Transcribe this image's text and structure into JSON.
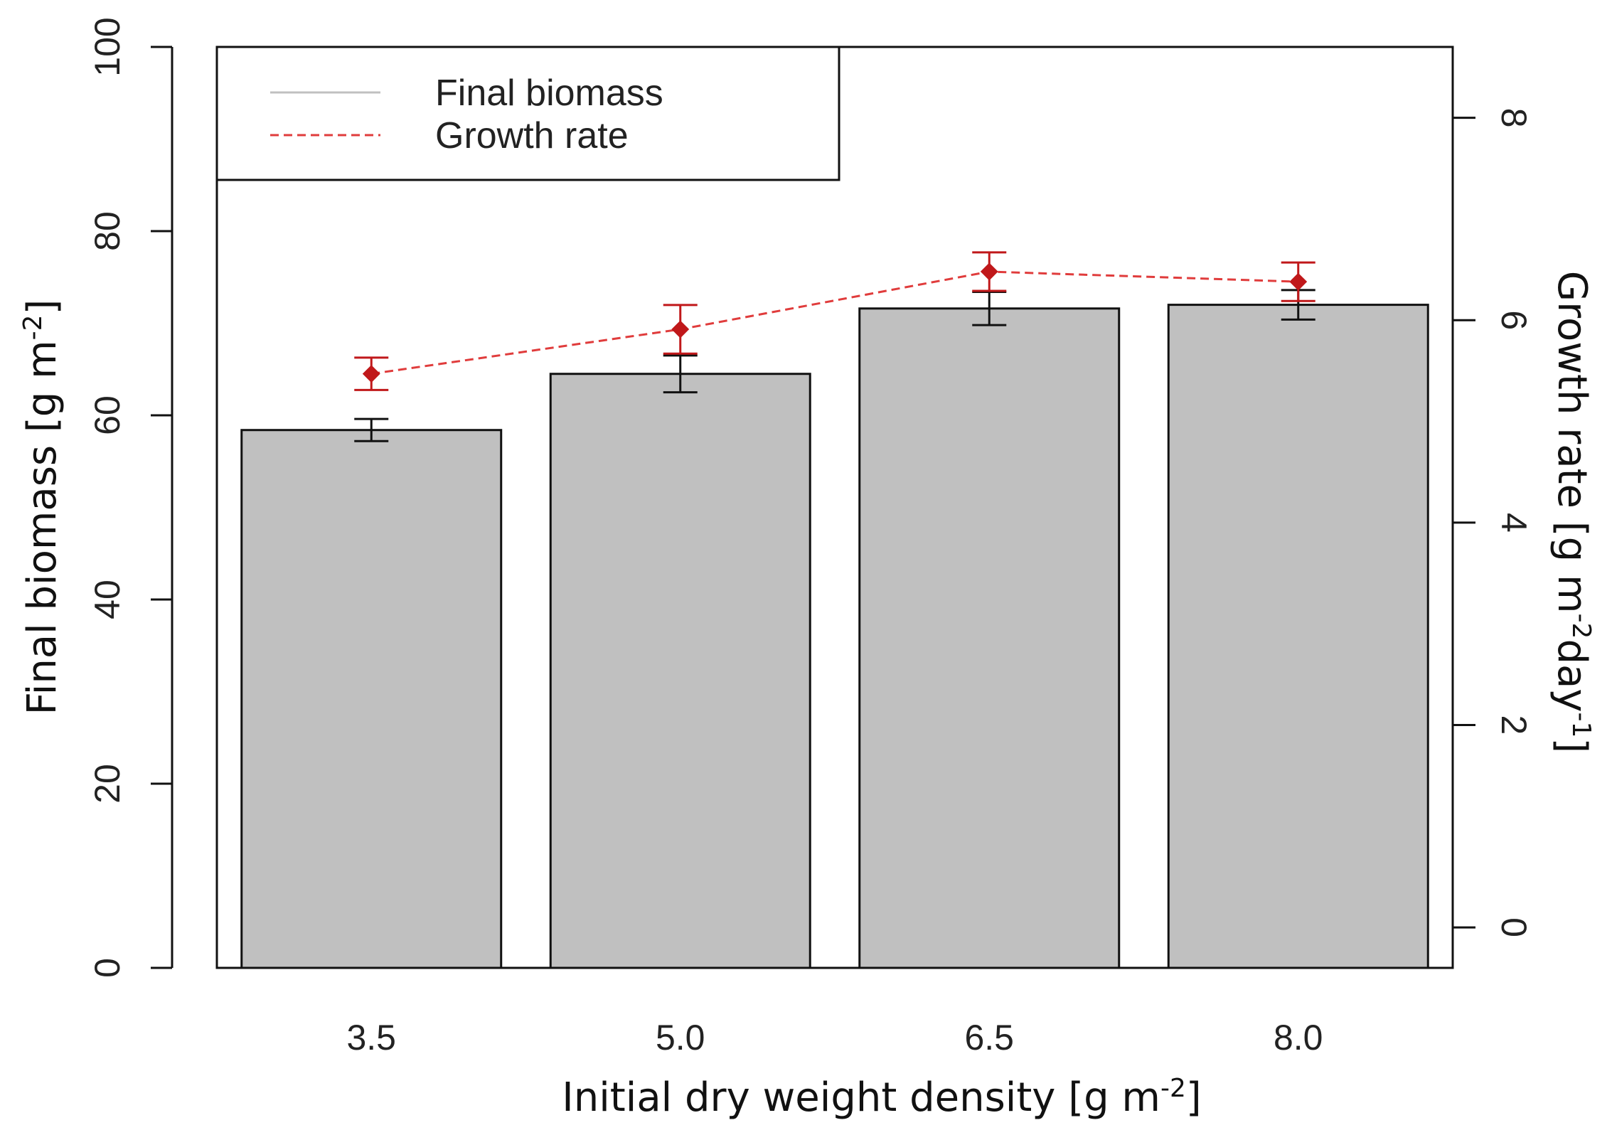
{
  "chart_data": {
    "type": "bar",
    "categories": [
      "3.5",
      "5.0",
      "6.5",
      "8.0"
    ],
    "series": [
      {
        "name": "Final biomass",
        "type": "bar",
        "axis": "left",
        "values": [
          58.4,
          64.5,
          71.6,
          72.0
        ],
        "errors": [
          1.2,
          2.0,
          1.8,
          1.6
        ],
        "color": "#c0c0c0"
      },
      {
        "name": "Growth rate",
        "type": "line",
        "axis": "right",
        "line_style": "dashed",
        "values": [
          5.47,
          5.91,
          6.48,
          6.38
        ],
        "errors": [
          0.16,
          0.24,
          0.19,
          0.19
        ],
        "color": "#e03c3c",
        "marker_color": "#c0181a"
      }
    ],
    "xlabel": "Initial dry weight density [g m",
    "xlabel_sup": "-2",
    "xlabel_end": "]",
    "ylabel": "Final biomass  [g m",
    "ylabel_sup": "-2",
    "ylabel_end": "]",
    "y2label": "Growth rate [g m",
    "y2label_sup1": "-2",
    "y2label_mid": "day",
    "y2label_sup2": "-1",
    "y2label_end": "]",
    "ylim": [
      0,
      100
    ],
    "yticks": [
      0,
      20,
      40,
      60,
      80,
      100
    ],
    "y2lim": [
      -0.4,
      8.7
    ],
    "y2ticks": [
      0,
      2,
      4,
      6,
      8
    ],
    "legend": {
      "position": "top-left",
      "entries": [
        "Final biomass",
        "Growth rate"
      ]
    },
    "grid": false
  }
}
